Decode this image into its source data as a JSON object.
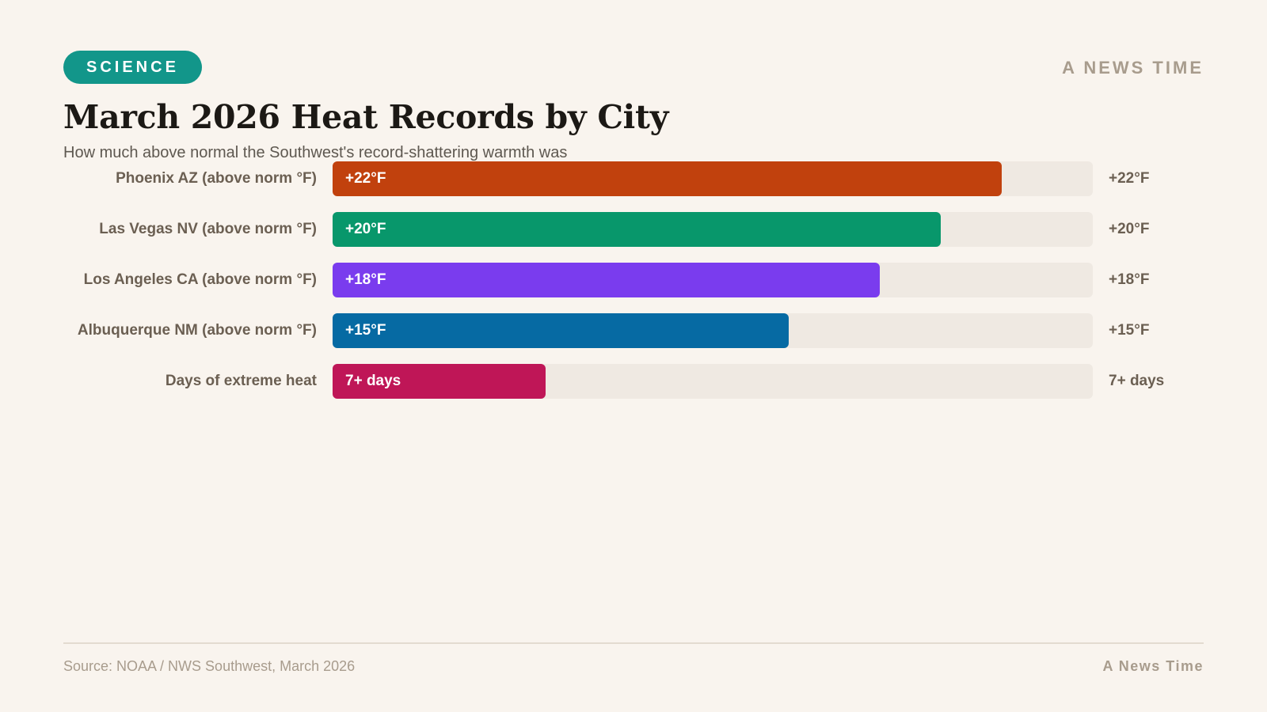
{
  "header": {
    "badge": "SCIENCE",
    "brand": "A NEWS TIME",
    "title": "March 2026 Heat Records by City",
    "subtitle": "How much above normal the Southwest's record-shattering warmth was"
  },
  "footer": {
    "source": "Source: NOAA / NWS Southwest, March 2026",
    "brand": "A News Time"
  },
  "colors": {
    "background": "#f9f4ee",
    "badge": "#12968a",
    "track": "#efe9e2"
  },
  "chart_data": {
    "type": "bar",
    "orientation": "horizontal",
    "title": "March 2026 Heat Records by City",
    "subtitle": "How much above normal the Southwest's record-shattering warmth was",
    "categories": [
      "Phoenix AZ (above norm °F)",
      "Las Vegas NV (above norm °F)",
      "Los Angeles CA (above norm °F)",
      "Albuquerque NM (above norm °F)",
      "Days of extreme heat"
    ],
    "values": [
      22,
      20,
      18,
      15,
      7
    ],
    "value_labels": [
      "+22°F",
      "+20°F",
      "+18°F",
      "+15°F",
      "7+ days"
    ],
    "bar_colors": [
      "#c1410d",
      "#08976b",
      "#7a3cee",
      "#066aa3",
      "#bf1657"
    ],
    "xlim": [
      0,
      25
    ],
    "grid": false,
    "legend": "none"
  }
}
